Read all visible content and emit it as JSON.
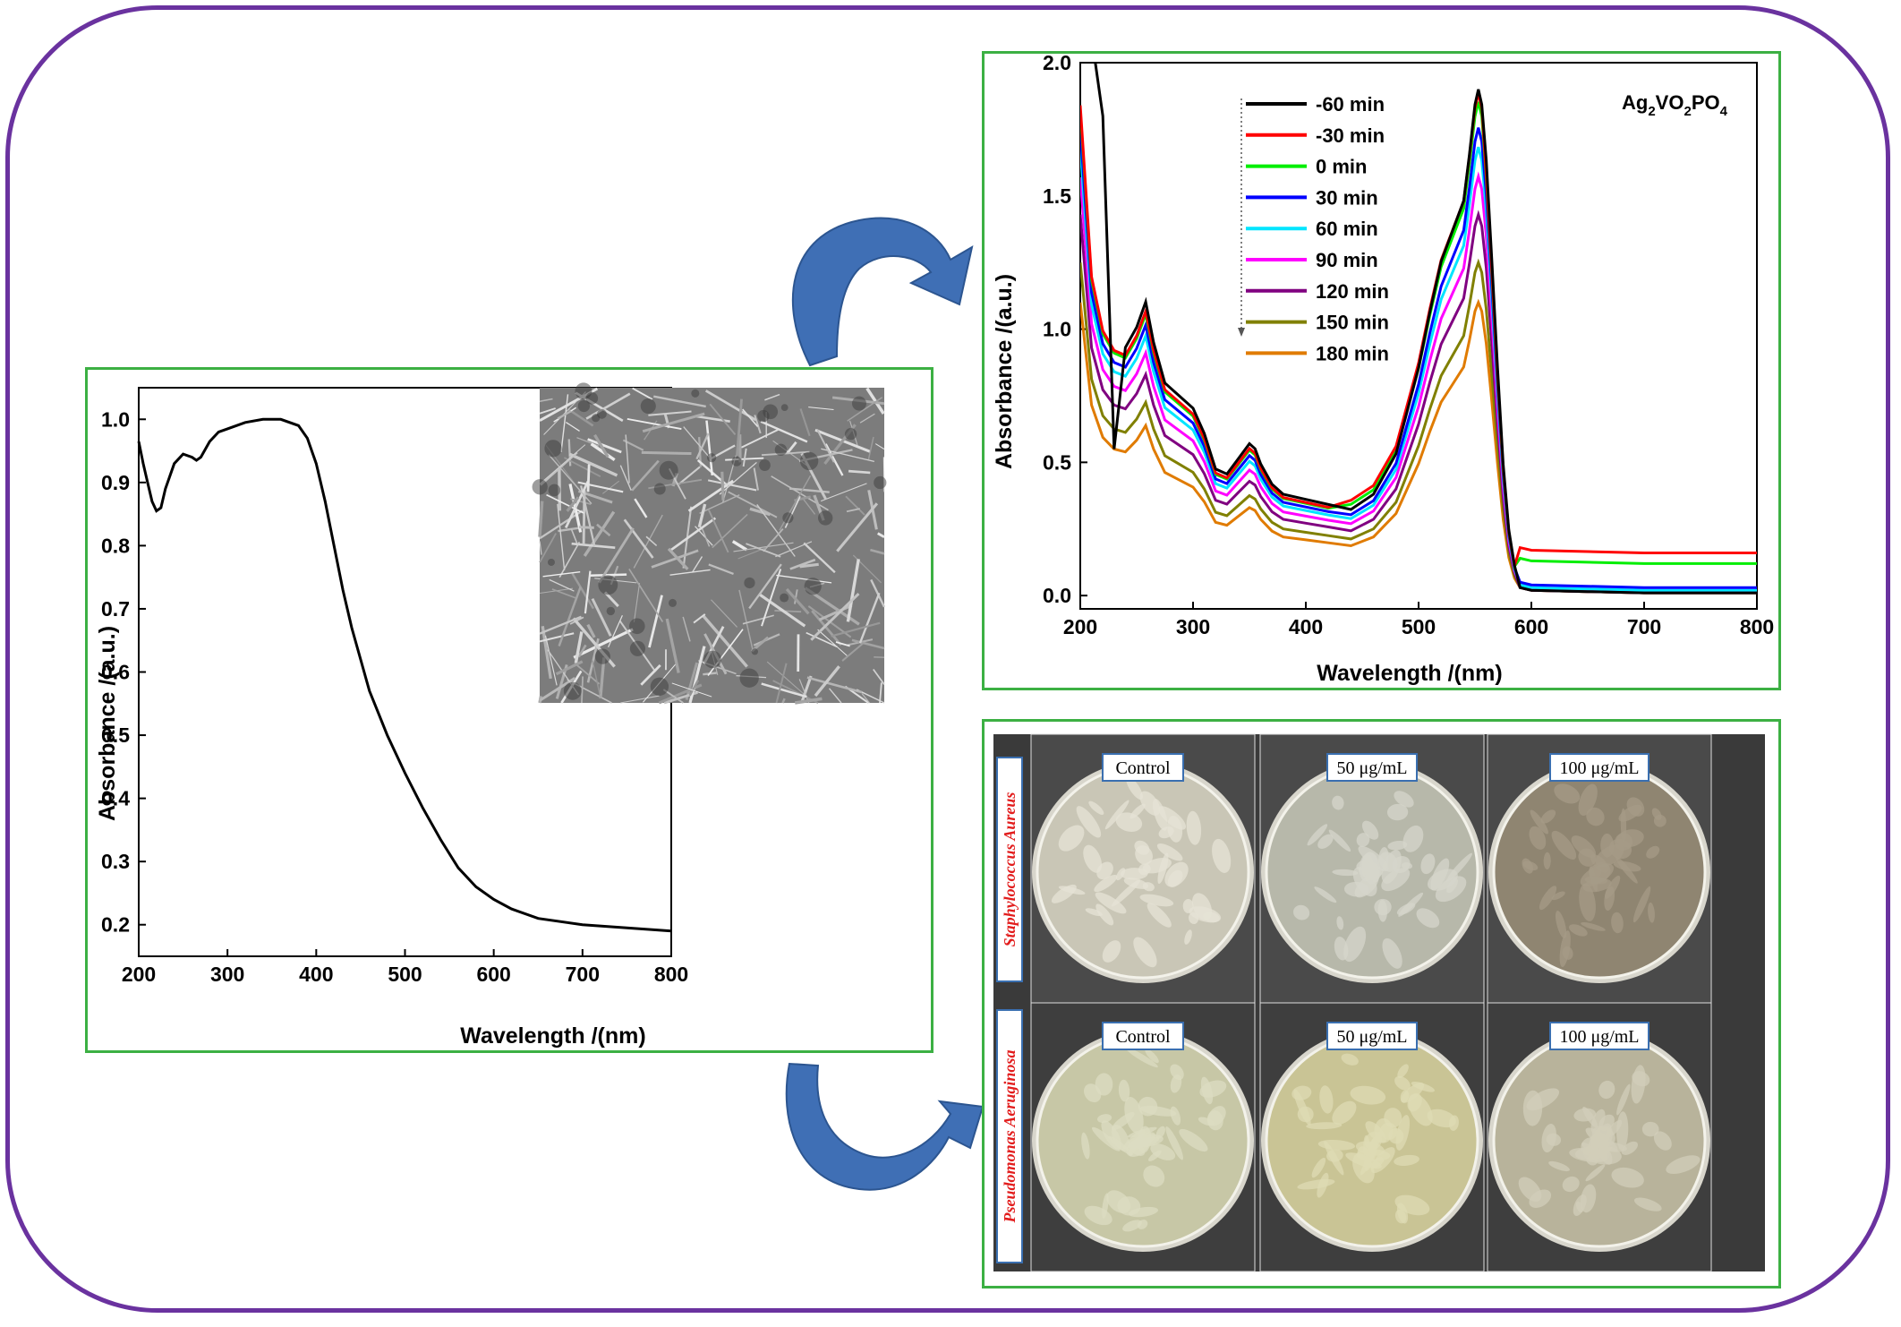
{
  "colors": {
    "frame": "#6a329f",
    "panel_border": "#3cb043",
    "arrow": "#3f6fb5"
  },
  "arrows": [
    "curved-arrow-icon",
    "curved-arrow-icon"
  ],
  "chart_data": [
    {
      "type": "line",
      "title": "",
      "xlabel": "Wavelength /(nm)",
      "ylabel": "Absorbance /(a.u.)",
      "xlim": [
        200,
        800
      ],
      "ylim": [
        0.15,
        1.05
      ],
      "x_ticks": [
        "200",
        "300",
        "400",
        "500",
        "600",
        "700",
        "800"
      ],
      "y_ticks": [
        "0.2",
        "0.3",
        "0.4",
        "0.5",
        "0.6",
        "0.7",
        "0.8",
        "0.9",
        "1.0"
      ],
      "series": [
        {
          "color": "#000000",
          "x": [
            200,
            205,
            210,
            215,
            220,
            225,
            230,
            240,
            250,
            260,
            265,
            270,
            280,
            290,
            300,
            320,
            340,
            360,
            380,
            390,
            400,
            410,
            420,
            430,
            440,
            450,
            460,
            470,
            480,
            500,
            520,
            540,
            560,
            580,
            600,
            620,
            650,
            700,
            750,
            800
          ],
          "y": [
            0.965,
            0.93,
            0.9,
            0.87,
            0.855,
            0.86,
            0.89,
            0.93,
            0.945,
            0.94,
            0.935,
            0.94,
            0.965,
            0.98,
            0.985,
            0.995,
            1.0,
            1.0,
            0.99,
            0.97,
            0.93,
            0.87,
            0.8,
            0.73,
            0.67,
            0.62,
            0.57,
            0.535,
            0.5,
            0.44,
            0.385,
            0.335,
            0.29,
            0.26,
            0.24,
            0.225,
            0.21,
            0.2,
            0.195,
            0.19
          ]
        }
      ]
    },
    {
      "type": "line",
      "title": "Ag₂VO₂PO₄",
      "title_parts": {
        "a": "Ag",
        "b": "2",
        "c": "VO",
        "d": "2",
        "e": "PO",
        "f": "4"
      },
      "xlabel": "Wavelength /(nm)",
      "ylabel": "Absorbance /(a.u.)",
      "xlim": [
        200,
        800
      ],
      "ylim": [
        -0.05,
        2.0
      ],
      "x_ticks": [
        "200",
        "300",
        "400",
        "500",
        "600",
        "700",
        "800"
      ],
      "y_ticks": [
        "0.0",
        "0.5",
        "1.0",
        "1.5",
        "2.0"
      ],
      "x": [
        200,
        210,
        220,
        230,
        240,
        250,
        258,
        265,
        275,
        285,
        300,
        310,
        320,
        330,
        340,
        350,
        355,
        360,
        370,
        380,
        400,
        420,
        440,
        460,
        480,
        500,
        510,
        520,
        530,
        540,
        545,
        550,
        553,
        556,
        560,
        565,
        570,
        575,
        580,
        585,
        590,
        600,
        650,
        700,
        750,
        800
      ],
      "base_shape": [
        1.0,
        0.65,
        0.54,
        0.5,
        0.49,
        0.53,
        0.58,
        0.5,
        0.42,
        0.4,
        0.37,
        0.32,
        0.25,
        0.24,
        0.27,
        0.3,
        0.29,
        0.26,
        0.22,
        0.2,
        0.19,
        0.18,
        0.17,
        0.2,
        0.28,
        0.45,
        0.56,
        0.66,
        0.72,
        0.78,
        0.87,
        0.97,
        1.0,
        0.97,
        0.86,
        0.66,
        0.45,
        0.26,
        0.13,
        0.06,
        0.03,
        0.02,
        0.015,
        0.01,
        0.01,
        0.01
      ],
      "series": [
        {
          "name": "-60 min",
          "color": "#000000",
          "peak": 1.9,
          "offset": 0.0
        },
        {
          "name": "-30 min",
          "color": "#ff0000",
          "peak": 1.84,
          "offset": 0.15
        },
        {
          "name": "0 min",
          "color": "#00ee00",
          "peak": 1.82,
          "offset": 0.11
        },
        {
          "name": "30 min",
          "color": "#0000ff",
          "peak": 1.75,
          "offset": 0.02
        },
        {
          "name": "60 min",
          "color": "#00e5ff",
          "peak": 1.68,
          "offset": 0.01
        },
        {
          "name": "90 min",
          "color": "#ff00ff",
          "peak": 1.57,
          "offset": 0.01
        },
        {
          "name": "120 min",
          "color": "#800080",
          "peak": 1.43,
          "offset": 0.0
        },
        {
          "name": "150 min",
          "color": "#808000",
          "peak": 1.25,
          "offset": 0.0
        },
        {
          "name": "180 min",
          "color": "#e07b00",
          "peak": 1.1,
          "offset": 0.0
        }
      ]
    }
  ],
  "antibacterial": {
    "rows": [
      {
        "organism": "Staphylococcus Aureus",
        "plates": [
          {
            "label": "Control",
            "agar": "#c9c6b6",
            "growth": "#e6e3d6"
          },
          {
            "label": "50 μg/mL",
            "agar": "#b7b8aa",
            "growth": "#d5d6cb"
          },
          {
            "label": "100 μg/mL",
            "agar": "#8f8571",
            "growth": "#a59b87"
          }
        ]
      },
      {
        "organism": "Pseudomonas Aeruginosa",
        "plates": [
          {
            "label": "Control",
            "agar": "#c7c7a6",
            "growth": "#dcdcc2"
          },
          {
            "label": "50 μg/mL",
            "agar": "#c9c495",
            "growth": "#dedbb4"
          },
          {
            "label": "100 μg/mL",
            "agar": "#b8b39b",
            "growth": "#d1cdb9"
          }
        ]
      }
    ]
  }
}
